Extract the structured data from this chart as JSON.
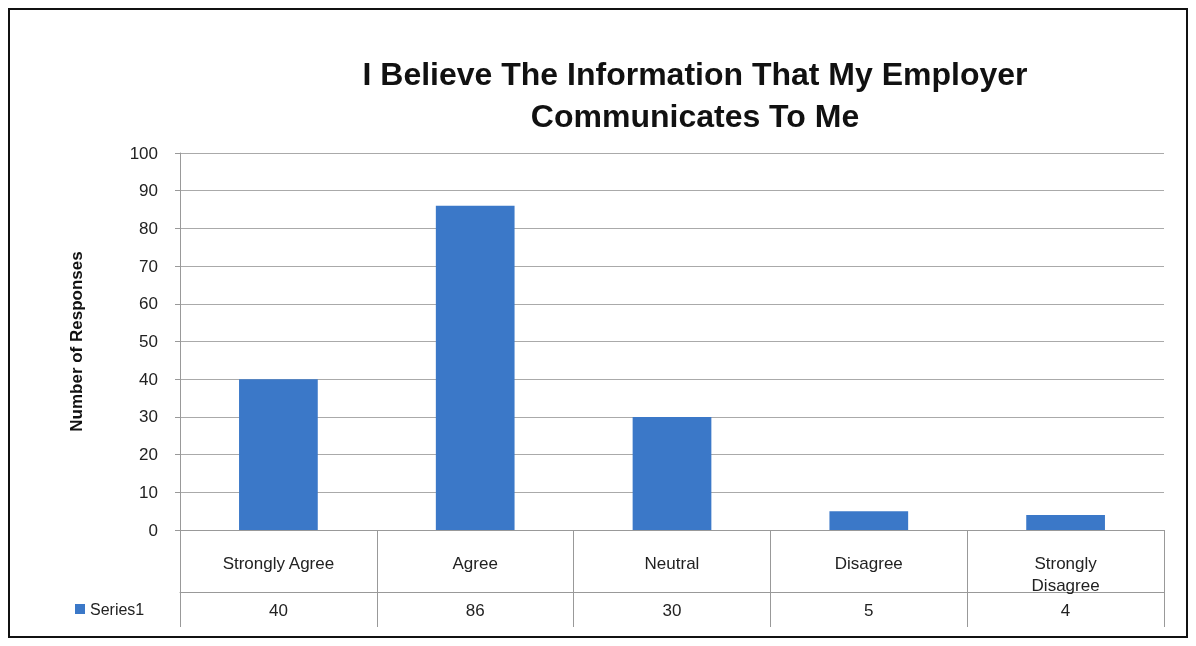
{
  "chart_data": {
    "type": "bar",
    "title": "I Believe The Information That My Employer\nCommunicates To Me",
    "ylabel": "Number of Responses",
    "categories": [
      "Strongly Agree",
      "Agree",
      "Neutral",
      "Disagree",
      "Strongly\nDisagree"
    ],
    "series": [
      {
        "name": "Series1",
        "color": "#3b78c8",
        "values": [
          40,
          86,
          30,
          5,
          4
        ]
      }
    ],
    "ylim": [
      0,
      100
    ],
    "yticks": [
      0,
      10,
      20,
      30,
      40,
      50,
      60,
      70,
      80,
      90,
      100
    ],
    "grid": "y",
    "legend": "bottom left",
    "data_labels": true
  }
}
